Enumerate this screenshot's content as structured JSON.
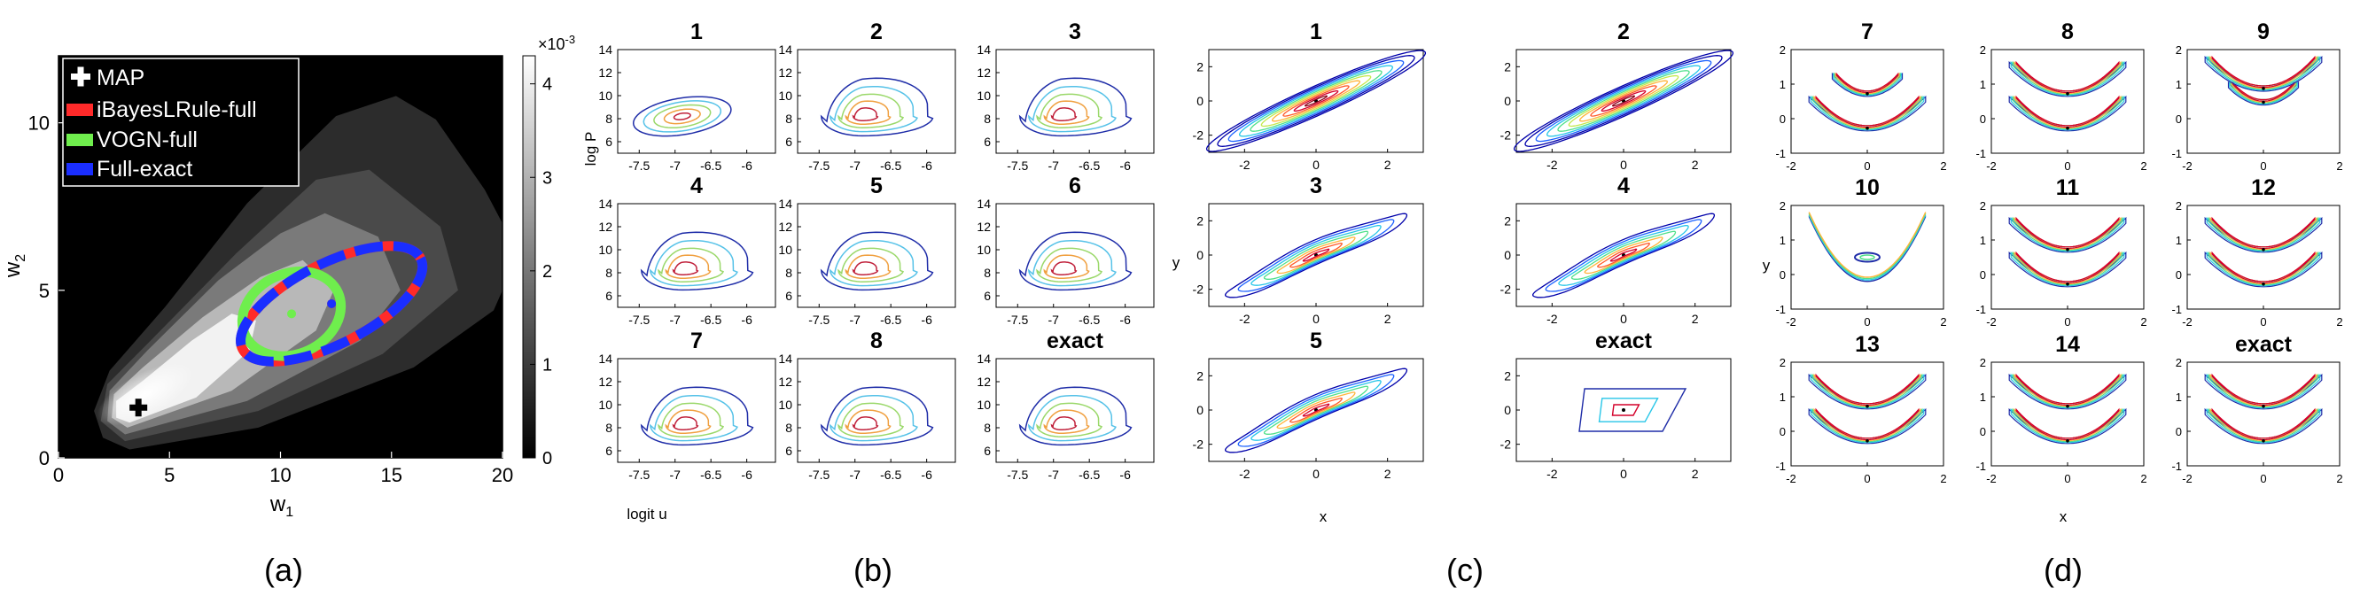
{
  "panel_captions": [
    "(a)",
    "(b)",
    "(c)",
    "(d)"
  ],
  "chart_data": [
    {
      "id": "a",
      "type": "heatmap",
      "xlabel": "w",
      "xlabel_sub": "1",
      "ylabel": "w",
      "ylabel_sub": "2",
      "xlim": [
        0,
        20
      ],
      "ylim": [
        0,
        12
      ],
      "xticks": [
        "0",
        "5",
        "10",
        "15",
        "20"
      ],
      "yticks": [
        "0",
        "5",
        "10"
      ],
      "colorbar": {
        "exponent": "×10",
        "exponent_power": "-3",
        "ticks": [
          "0",
          "1",
          "2",
          "3",
          "4"
        ],
        "range": [
          0,
          4.3
        ]
      },
      "legend_position": "top-left",
      "legend": [
        {
          "label": "MAP",
          "color": "#000000",
          "marker": "plus"
        },
        {
          "label": "iBayesLRule-full",
          "color": "#ff2a2a",
          "marker": "line"
        },
        {
          "label": "VOGN-full",
          "color": "#6fee4d",
          "marker": "line"
        },
        {
          "label": "Full-exact",
          "color": "#1a2eff",
          "marker": "line"
        }
      ],
      "map_point": [
        3.6,
        1.5
      ],
      "ellipses": [
        {
          "name": "iBayesLRule-full",
          "center": [
            12.3,
            4.6
          ],
          "semi_axes": [
            4.5,
            1.2
          ],
          "angle_deg": 27
        },
        {
          "name": "VOGN-full",
          "center": [
            10.5,
            4.3
          ],
          "semi_axes": [
            2.3,
            1.2
          ],
          "angle_deg": 25
        },
        {
          "name": "Full-exact",
          "center": [
            12.3,
            4.6
          ],
          "semi_axes": [
            4.5,
            1.2
          ],
          "angle_deg": 27
        }
      ]
    },
    {
      "id": "b",
      "type": "contour",
      "xlabel": "logit u",
      "ylabel": "log P",
      "xlim": [
        -7.8,
        -5.6
      ],
      "ylim": [
        5,
        14
      ],
      "xticks": [
        "-7.5",
        "-7",
        "-6.5",
        "-6"
      ],
      "yticks": [
        "6",
        "8",
        "10",
        "12",
        "14"
      ],
      "subplots": [
        "1",
        "2",
        "3",
        "4",
        "5",
        "6",
        "7",
        "8",
        "exact"
      ]
    },
    {
      "id": "c",
      "type": "contour",
      "xlabel": "x",
      "ylabel": "y",
      "xlim": [
        -3,
        3
      ],
      "ylim": [
        -3,
        3
      ],
      "xticks": [
        "-2",
        "0",
        "2"
      ],
      "yticks": [
        "-2",
        "0",
        "2"
      ],
      "subplots": [
        "1",
        "2",
        "3",
        "4",
        "5",
        "exact"
      ]
    },
    {
      "id": "d",
      "type": "contour",
      "xlabel": "x",
      "ylabel": "y",
      "xlim": [
        -2,
        2
      ],
      "ylim": [
        -1,
        2
      ],
      "xticks": [
        "-2",
        "0",
        "2"
      ],
      "yticks": [
        "-1",
        "0",
        "1",
        "2"
      ],
      "subplots": [
        "7",
        "8",
        "9",
        "10",
        "11",
        "12",
        "13",
        "14",
        "exact"
      ]
    }
  ]
}
